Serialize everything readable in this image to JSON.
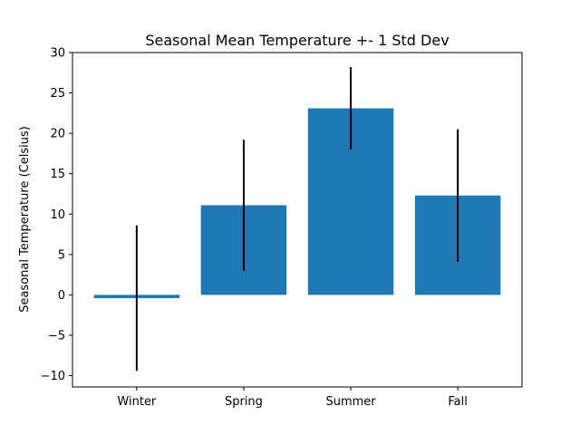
{
  "chart_data": {
    "type": "bar",
    "title": "Seasonal Mean Temperature +- 1 Std Dev",
    "xlabel": "",
    "ylabel": "Seasonal Temperature (Celsius)",
    "categories": [
      "Winter",
      "Spring",
      "Summer",
      "Fall"
    ],
    "values": [
      -0.4,
      11.1,
      23.1,
      12.3
    ],
    "error": [
      9.0,
      8.1,
      5.1,
      8.2
    ],
    "ylim": [
      -11.4,
      30
    ],
    "yticks": [
      -10,
      -5,
      0,
      5,
      10,
      15,
      20,
      25,
      30
    ],
    "ytick_labels": [
      "−10",
      "−5",
      "0",
      "5",
      "10",
      "15",
      "20",
      "25",
      "30"
    ],
    "grid": false,
    "bar_color": "#1f77b4",
    "error_color": "#000000"
  }
}
